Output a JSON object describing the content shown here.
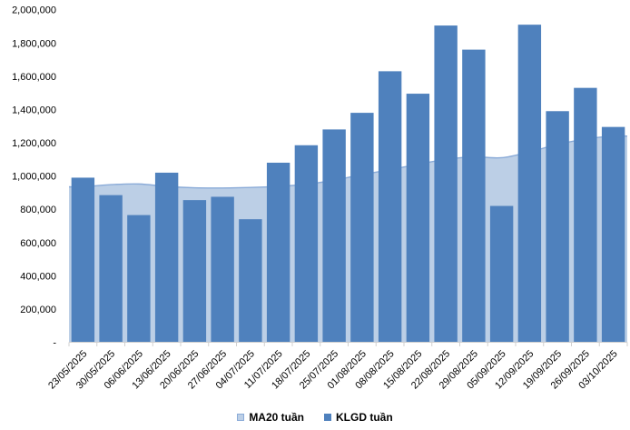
{
  "chart_data": {
    "type": "combo (bar + area)",
    "title": "",
    "xlabel": "",
    "ylabel": "",
    "categories": [
      "23/05/2025",
      "30/05/2025",
      "06/06/2025",
      "13/06/2025",
      "20/06/2025",
      "27/06/2025",
      "04/07/2025",
      "11/07/2025",
      "18/07/2025",
      "25/07/2025",
      "01/08/2025",
      "08/08/2025",
      "15/08/2025",
      "22/08/2025",
      "29/08/2025",
      "05/09/2025",
      "12/09/2025",
      "19/09/2025",
      "26/09/2025",
      "03/10/2025"
    ],
    "series": [
      {
        "name": "MA20 tuần",
        "type": "area",
        "values": [
          935000,
          948000,
          952000,
          937000,
          929000,
          928000,
          931000,
          938000,
          950000,
          975000,
          1008000,
          1038000,
          1070000,
          1100000,
          1115000,
          1110000,
          1145000,
          1190000,
          1222000,
          1240000
        ]
      },
      {
        "name": "KLGD tuần",
        "type": "bar",
        "values": [
          990000,
          885000,
          765000,
          1020000,
          855000,
          875000,
          740000,
          1080000,
          1185000,
          1280000,
          1380000,
          1630000,
          1495000,
          1905000,
          1760000,
          820000,
          1910000,
          1390000,
          1530000,
          1295000
        ]
      }
    ],
    "ylim": [
      0,
      2000000
    ],
    "y_tick_step": 200000,
    "y_tick_labels": [
      "-",
      "200,000",
      "400,000",
      "600,000",
      "800,000",
      "1,000,000",
      "1,200,000",
      "1,400,000",
      "1,600,000",
      "1,800,000",
      "2,000,000"
    ],
    "x_label_rotation": -45,
    "grid": "off",
    "legend_position": "bottom-center"
  },
  "legend": {
    "ma20_label": "MA20 tuần",
    "klgd_label": "KLGD tuần"
  },
  "colors": {
    "bar": "#4f81bd",
    "area_fill": "#bccfe6",
    "area_line": "#8aabd8",
    "axis": "#d0d0d0",
    "text": "#000000"
  }
}
